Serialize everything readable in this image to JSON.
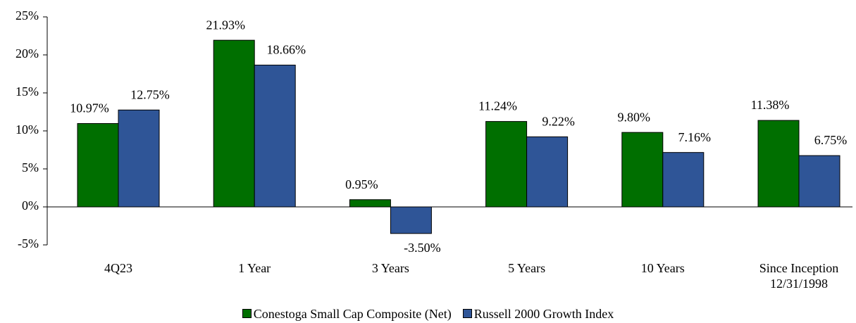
{
  "chart_data": {
    "type": "bar",
    "categories": [
      "4Q23",
      "1 Year",
      "3 Years",
      "5 Years",
      "10 Years",
      "Since Inception\n12/31/1998"
    ],
    "series": [
      {
        "name": "Conestoga Small Cap Composite (Net)",
        "color": "#006f00",
        "values": [
          10.97,
          21.93,
          0.95,
          11.24,
          9.8,
          11.38
        ],
        "value_labels": [
          "10.97%",
          "21.93%",
          "0.95%",
          "11.24%",
          "9.80%",
          "11.38%"
        ]
      },
      {
        "name": "Russell 2000 Growth Index",
        "color": "#2f5597",
        "values": [
          12.75,
          18.66,
          -3.5,
          9.22,
          7.16,
          6.75
        ],
        "value_labels": [
          "12.75%",
          "18.66%",
          "-3.50%",
          "9.22%",
          "7.16%",
          "6.75%"
        ]
      }
    ],
    "ylim": [
      -5,
      25
    ],
    "yticks": [
      {
        "value": -5,
        "label": "-5%"
      },
      {
        "value": 0,
        "label": "0%"
      },
      {
        "value": 5,
        "label": "5%"
      },
      {
        "value": 10,
        "label": "10%"
      },
      {
        "value": 15,
        "label": "15%"
      },
      {
        "value": 20,
        "label": "20%"
      },
      {
        "value": 25,
        "label": "25%"
      }
    ],
    "legend": "bottom"
  }
}
